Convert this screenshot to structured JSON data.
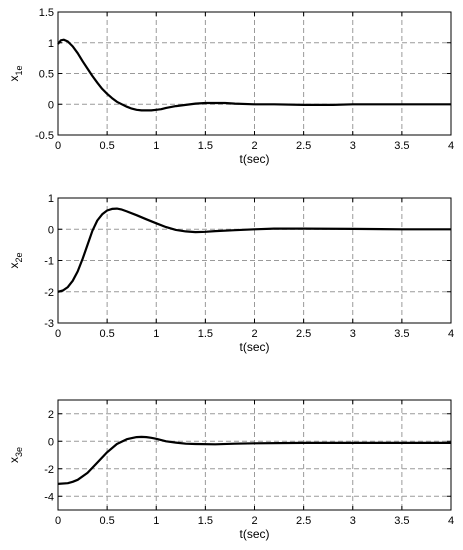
{
  "chart_data": [
    {
      "type": "line",
      "xlabel": "t(sec)",
      "ylabel": {
        "base": "x",
        "sub": "1e"
      },
      "xlim": [
        0,
        4
      ],
      "ylim": [
        -0.5,
        1.5
      ],
      "xticks": [
        "0",
        "0.5",
        "1",
        "1.5",
        "2",
        "2.5",
        "3",
        "3.5",
        "4"
      ],
      "yticks": [
        "-0.5",
        "0",
        "0.5",
        "1",
        "1.5"
      ],
      "grid": true,
      "series": [
        {
          "x": [
            0,
            0.03,
            0.06,
            0.1,
            0.15,
            0.2,
            0.25,
            0.3,
            0.35,
            0.4,
            0.45,
            0.5,
            0.55,
            0.6,
            0.65,
            0.7,
            0.75,
            0.8,
            0.85,
            0.9,
            0.95,
            1.0,
            1.05,
            1.1,
            1.2,
            1.3,
            1.4,
            1.5,
            1.6,
            1.7,
            1.8,
            2.0,
            2.2,
            2.5,
            2.8,
            3.0,
            3.5,
            4.0
          ],
          "y": [
            0.98,
            1.04,
            1.05,
            1.02,
            0.94,
            0.83,
            0.7,
            0.58,
            0.46,
            0.35,
            0.25,
            0.17,
            0.1,
            0.04,
            0.0,
            -0.04,
            -0.07,
            -0.09,
            -0.1,
            -0.1,
            -0.1,
            -0.09,
            -0.08,
            -0.06,
            -0.03,
            -0.01,
            0.01,
            0.02,
            0.02,
            0.02,
            0.01,
            0.0,
            0.0,
            -0.01,
            -0.01,
            0.0,
            0.0,
            0.0
          ]
        }
      ]
    },
    {
      "type": "line",
      "xlabel": "t(sec)",
      "ylabel": {
        "base": "x",
        "sub": "2e"
      },
      "xlim": [
        0,
        4
      ],
      "ylim": [
        -3,
        1
      ],
      "xticks": [
        "0",
        "0.5",
        "1",
        "1.5",
        "2",
        "2.5",
        "3",
        "3.5",
        "4"
      ],
      "yticks": [
        "-3",
        "-2",
        "-1",
        "0",
        "1"
      ],
      "grid": true,
      "series": [
        {
          "x": [
            0,
            0.05,
            0.1,
            0.15,
            0.2,
            0.25,
            0.3,
            0.35,
            0.4,
            0.45,
            0.5,
            0.55,
            0.6,
            0.65,
            0.7,
            0.8,
            0.9,
            1.0,
            1.1,
            1.2,
            1.3,
            1.4,
            1.5,
            1.6,
            1.8,
            2.0,
            2.2,
            2.5,
            3.0,
            3.5,
            4.0
          ],
          "y": [
            -2.0,
            -1.96,
            -1.85,
            -1.65,
            -1.35,
            -0.95,
            -0.5,
            -0.05,
            0.28,
            0.48,
            0.6,
            0.65,
            0.66,
            0.63,
            0.57,
            0.45,
            0.32,
            0.19,
            0.07,
            -0.02,
            -0.07,
            -0.09,
            -0.08,
            -0.06,
            -0.03,
            0.0,
            0.02,
            0.02,
            0.01,
            0.0,
            0.0
          ]
        }
      ]
    },
    {
      "type": "line",
      "xlabel": "t(sec)",
      "ylabel": {
        "base": "x",
        "sub": "3e"
      },
      "xlim": [
        0,
        4
      ],
      "ylim": [
        -5,
        3
      ],
      "xticks": [
        "0",
        "0.5",
        "1",
        "1.5",
        "2",
        "2.5",
        "3",
        "3.5",
        "4"
      ],
      "yticks": [
        "-4",
        "-2",
        "0",
        "2"
      ],
      "grid": true,
      "series": [
        {
          "x": [
            0,
            0.1,
            0.15,
            0.2,
            0.3,
            0.4,
            0.5,
            0.6,
            0.7,
            0.8,
            0.85,
            0.9,
            0.95,
            1.0,
            1.1,
            1.2,
            1.3,
            1.4,
            1.6,
            1.8,
            2.0,
            2.5,
            3.0,
            3.5,
            4.0
          ],
          "y": [
            -3.1,
            -3.05,
            -2.95,
            -2.8,
            -2.3,
            -1.55,
            -0.8,
            -0.2,
            0.15,
            0.3,
            0.32,
            0.3,
            0.25,
            0.18,
            0.0,
            -0.1,
            -0.18,
            -0.2,
            -0.22,
            -0.18,
            -0.15,
            -0.12,
            -0.12,
            -0.12,
            -0.12
          ]
        }
      ]
    }
  ]
}
